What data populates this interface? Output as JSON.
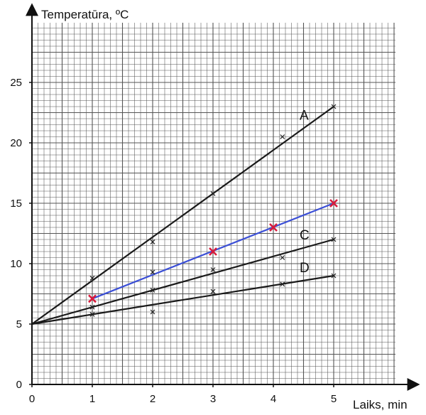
{
  "colors": {
    "grid": "#555555",
    "axis": "#111111",
    "fit_line": "#1a1a1a",
    "highlight_line": "#3b4fd6",
    "highlight_marker": "#d81b3c",
    "marker": "#222222"
  },
  "chart_data": {
    "type": "scatter",
    "xlabel": "Laiks, min",
    "ylabel": "Temperatūra, ºC",
    "xlim": [
      0,
      6.2
    ],
    "ylim": [
      0,
      30.5
    ],
    "x_ticks": [
      "0",
      "1",
      "2",
      "3",
      "4",
      "5"
    ],
    "y_ticks": [
      "0",
      "5",
      "10",
      "15",
      "20",
      "25"
    ],
    "grid": true,
    "minor_grid_step": {
      "x": 0.1,
      "y": 0.5
    },
    "series": [
      {
        "name": "A",
        "style": "fit",
        "points": [
          [
            1,
            8.8
          ],
          [
            2,
            11.8
          ],
          [
            3,
            15.8
          ],
          [
            4.15,
            20.5
          ],
          [
            5,
            23
          ]
        ],
        "fit": [
          [
            0,
            5
          ],
          [
            5,
            23
          ]
        ]
      },
      {
        "name": "",
        "style": "highlight",
        "points": [
          [
            1,
            7.1
          ],
          [
            3,
            11
          ],
          [
            4,
            13
          ],
          [
            5,
            15
          ]
        ],
        "fit": [
          [
            1,
            7.1
          ],
          [
            5,
            15
          ]
        ]
      },
      {
        "name": "C",
        "style": "fit",
        "points": [
          [
            1,
            6.4
          ],
          [
            2,
            9.3
          ],
          [
            2,
            7.8
          ],
          [
            3,
            9.5
          ],
          [
            4.15,
            10.5
          ],
          [
            5,
            12
          ]
        ],
        "fit": [
          [
            0,
            5
          ],
          [
            5,
            12
          ]
        ]
      },
      {
        "name": "D",
        "style": "fit",
        "points": [
          [
            1,
            5.8
          ],
          [
            2,
            6
          ],
          [
            3,
            7.7
          ],
          [
            4.15,
            8.3
          ],
          [
            5,
            9
          ]
        ],
        "fit": [
          [
            0,
            5
          ],
          [
            5,
            9
          ]
        ]
      }
    ]
  }
}
